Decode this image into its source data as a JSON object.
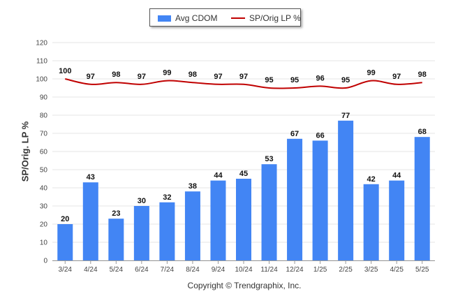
{
  "chart_data": {
    "type": "bar",
    "categories": [
      "3/24",
      "4/24",
      "5/24",
      "6/24",
      "7/24",
      "8/24",
      "9/24",
      "10/24",
      "11/24",
      "12/24",
      "1/25",
      "2/25",
      "3/25",
      "4/25",
      "5/25"
    ],
    "series": [
      {
        "name": "Avg CDOM",
        "type": "bar",
        "values": [
          20,
          43,
          23,
          30,
          32,
          38,
          44,
          45,
          53,
          67,
          66,
          77,
          42,
          44,
          68
        ]
      },
      {
        "name": "SP/Orig LP %",
        "type": "line",
        "values": [
          100,
          97,
          98,
          97,
          99,
          98,
          97,
          97,
          95,
          95,
          96,
          95,
          99,
          97,
          98
        ]
      }
    ],
    "ylabel": "SP/Orig. LP %",
    "ylim": [
      0,
      120
    ],
    "yticks": [
      0,
      10,
      20,
      30,
      40,
      50,
      60,
      70,
      80,
      90,
      100,
      110,
      120
    ],
    "grid": true,
    "legend_position": "top-center",
    "colors": {
      "bar": "#4285f4",
      "line": "#c00000",
      "grid": "#e6e6e6",
      "text": "#333333"
    }
  },
  "legend": {
    "bar_label": "Avg CDOM",
    "line_label": "SP/Orig LP %"
  },
  "copyright": "Copyright © Trendgraphix, Inc."
}
